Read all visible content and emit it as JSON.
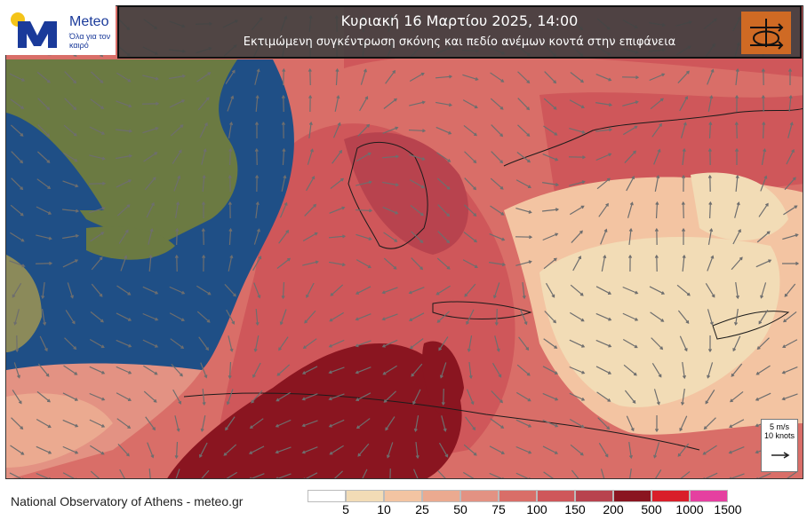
{
  "title": {
    "line1": "Κυριακή  16 Μαρτίου  2025, 14:00",
    "line2": "Εκτιμώμενη συγκέντρωση σκόνης και πεδίο ανέμων κοντά στην επιφάνεια"
  },
  "logo": {
    "brand": "Meteo",
    "tagline": "Όλα για τον καιρό"
  },
  "wind_reference": {
    "speed_ms": "5 m/s",
    "speed_knots": "10 knots"
  },
  "footer": {
    "credit": "National Observatory of Athens - meteo.gr"
  },
  "legend": {
    "bins": [
      {
        "label": "5",
        "color": "#ffffff"
      },
      {
        "label": "10",
        "color": "#f2dcb6"
      },
      {
        "label": "25",
        "color": "#f3c4a2"
      },
      {
        "label": "50",
        "color": "#ebaa90"
      },
      {
        "label": "75",
        "color": "#e39283"
      },
      {
        "label": "100",
        "color": "#d96e68"
      },
      {
        "label": "150",
        "color": "#cf575a"
      },
      {
        "label": "200",
        "color": "#b8434e"
      },
      {
        "label": "500",
        "color": "#8a1520"
      },
      {
        "label": "1000",
        "color": "#d91f2a"
      },
      {
        "label": "1500",
        "color": "#e540a0"
      }
    ]
  },
  "colors": {
    "sea": "#1f4f86",
    "land": "#6b7a42",
    "dust_high": "#8a1520",
    "dust_mid": "#cf575a",
    "dust_low": "#f2dcb6",
    "badge": "#cf6a24"
  },
  "icons": {
    "logo": "meteo-m-logo",
    "badge": "dust-wind-icon",
    "wind": "wind-arrow-icon"
  }
}
